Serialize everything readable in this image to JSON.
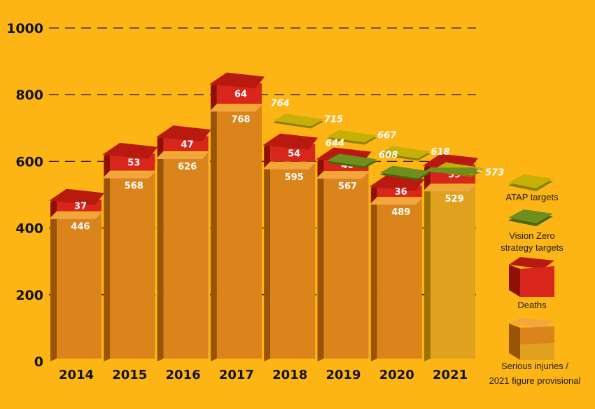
{
  "chart_data": {
    "type": "bar",
    "categories": [
      "2014",
      "2015",
      "2016",
      "2017",
      "2018",
      "2019",
      "2020",
      "2021"
    ],
    "series": [
      {
        "name": "Serious injuries / 2021 figure provisional",
        "values": [
          446,
          568,
          626,
          768,
          595,
          567,
          489,
          529
        ]
      },
      {
        "name": "Deaths",
        "values": [
          37,
          53,
          47,
          64,
          54,
          40,
          36,
          59
        ]
      }
    ],
    "atap_targets": [
      null,
      null,
      null,
      null,
      764,
      715,
      667,
      618
    ],
    "vision_zero_targets": [
      null,
      null,
      null,
      null,
      null,
      644,
      608,
      573
    ],
    "ylim": [
      0,
      1000
    ],
    "yticks": [
      "0",
      "200",
      "400",
      "600",
      "800",
      "1000"
    ],
    "stacked": true,
    "grid": "dashed horizontal",
    "legend_position": "right",
    "legend": [
      {
        "label": "ATAP targets",
        "key": "atap"
      },
      {
        "label": "Vision Zero strategy targets",
        "key": "vz"
      },
      {
        "label": "Deaths",
        "key": "deaths"
      },
      {
        "label": "Serious injuries / 2021 figure provisional",
        "key": "si"
      }
    ],
    "colors": {
      "background": "#FDB515",
      "serious_front": "#DB841C",
      "serious_side": "#9A5408",
      "serious_top": "#F2A63E",
      "provisional_front": "#E0A21E",
      "provisional_side": "#9C7206",
      "deaths_front": "#D9261C",
      "deaths_side": "#8E1008",
      "deaths_top": "#B81A10",
      "atap_top": "#C6B008",
      "atap_edge": "#8E7E00",
      "vz_top": "#6E8E1E",
      "vz_edge": "#4A6608"
    }
  }
}
